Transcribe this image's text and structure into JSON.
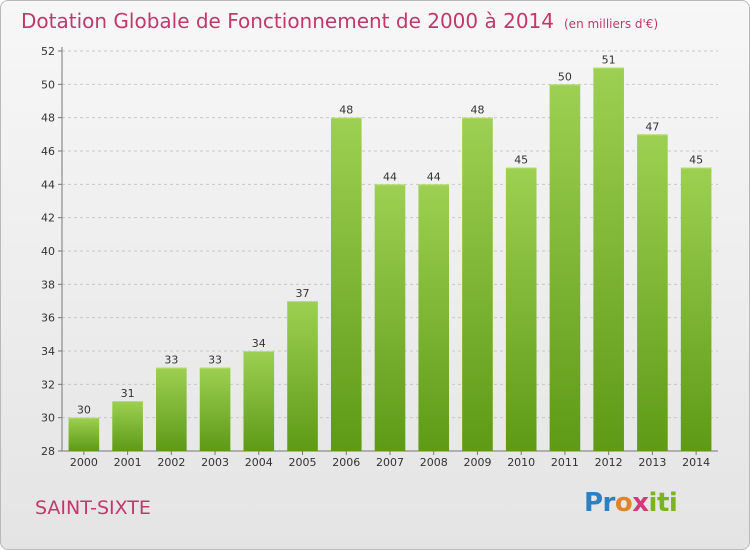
{
  "header": {
    "title": "Dotation Globale de Fonctionnement de 2000 à 2014",
    "unit": "(en milliers d'€)"
  },
  "footer": {
    "commune": "SAINT-SIXTE",
    "logo_text": "Proxiti"
  },
  "colors": {
    "title": "#c0396b",
    "bar_top": "#9dd052",
    "bar_bottom": "#5e9a16",
    "grid": "#c8c8c8"
  },
  "chart_data": {
    "type": "bar",
    "title": "Dotation Globale de Fonctionnement de 2000 à 2014",
    "subtitle": "(en milliers d'€)",
    "xlabel": "",
    "ylabel": "",
    "categories": [
      "2000",
      "2001",
      "2002",
      "2003",
      "2004",
      "2005",
      "2006",
      "2007",
      "2008",
      "2009",
      "2010",
      "2011",
      "2012",
      "2013",
      "2014"
    ],
    "values": [
      30,
      31,
      33,
      33,
      34,
      37,
      48,
      44,
      44,
      48,
      45,
      50,
      51,
      47,
      45
    ],
    "ylim": [
      28,
      52
    ],
    "yticks": [
      28,
      30,
      32,
      34,
      36,
      38,
      40,
      42,
      44,
      46,
      48,
      50,
      52
    ],
    "grid": true,
    "data_labels": true
  }
}
